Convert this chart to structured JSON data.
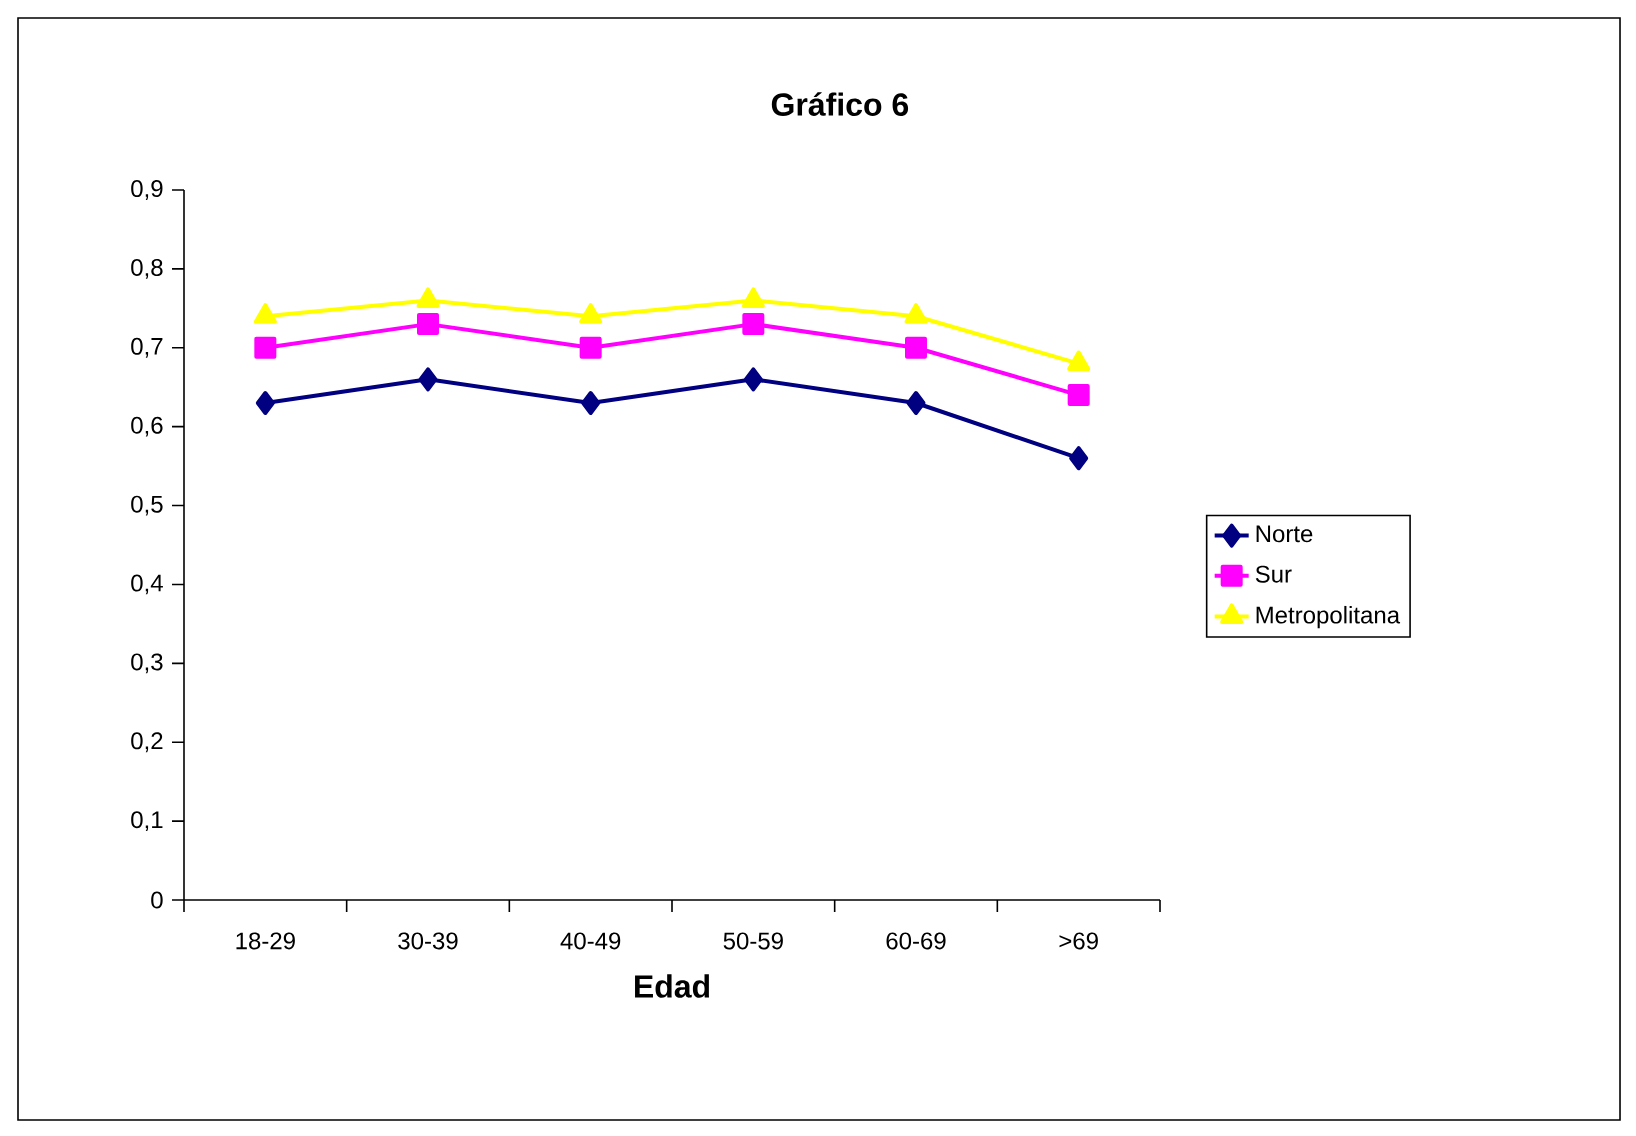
{
  "chart_data": {
    "type": "line",
    "title": "Gráfico 6",
    "xlabel": "Edad",
    "categories": [
      "18-29",
      "30-39",
      "40-49",
      "50-59",
      "60-69",
      ">69"
    ],
    "series": [
      {
        "name": "Norte",
        "color": "#000080",
        "marker": "diamond",
        "values": [
          0.63,
          0.66,
          0.63,
          0.66,
          0.63,
          0.56
        ]
      },
      {
        "name": "Sur",
        "color": "#ff00ff",
        "marker": "square",
        "values": [
          0.7,
          0.73,
          0.7,
          0.73,
          0.7,
          0.64
        ]
      },
      {
        "name": "Metropolitana",
        "color": "#ffff00",
        "marker": "triangle",
        "values": [
          0.74,
          0.76,
          0.74,
          0.76,
          0.74,
          0.68
        ]
      }
    ],
    "ylim": [
      0,
      0.9
    ],
    "yticks": [
      0,
      {
        "value": 0.1,
        "label": "0,1"
      },
      {
        "value": 0.2,
        "label": "0,2"
      },
      {
        "value": 0.3,
        "label": "0,3"
      },
      {
        "value": 0.4,
        "label": "0,4"
      },
      {
        "value": 0.5,
        "label": "0,5"
      },
      {
        "value": 0.6,
        "label": "0,6"
      },
      {
        "value": 0.7,
        "label": "0,7"
      },
      {
        "value": 0.8,
        "label": "0,8"
      },
      {
        "value": 0.9,
        "label": "0,9"
      }
    ],
    "grid": false,
    "legend": "right",
    "line_style": "solid"
  }
}
